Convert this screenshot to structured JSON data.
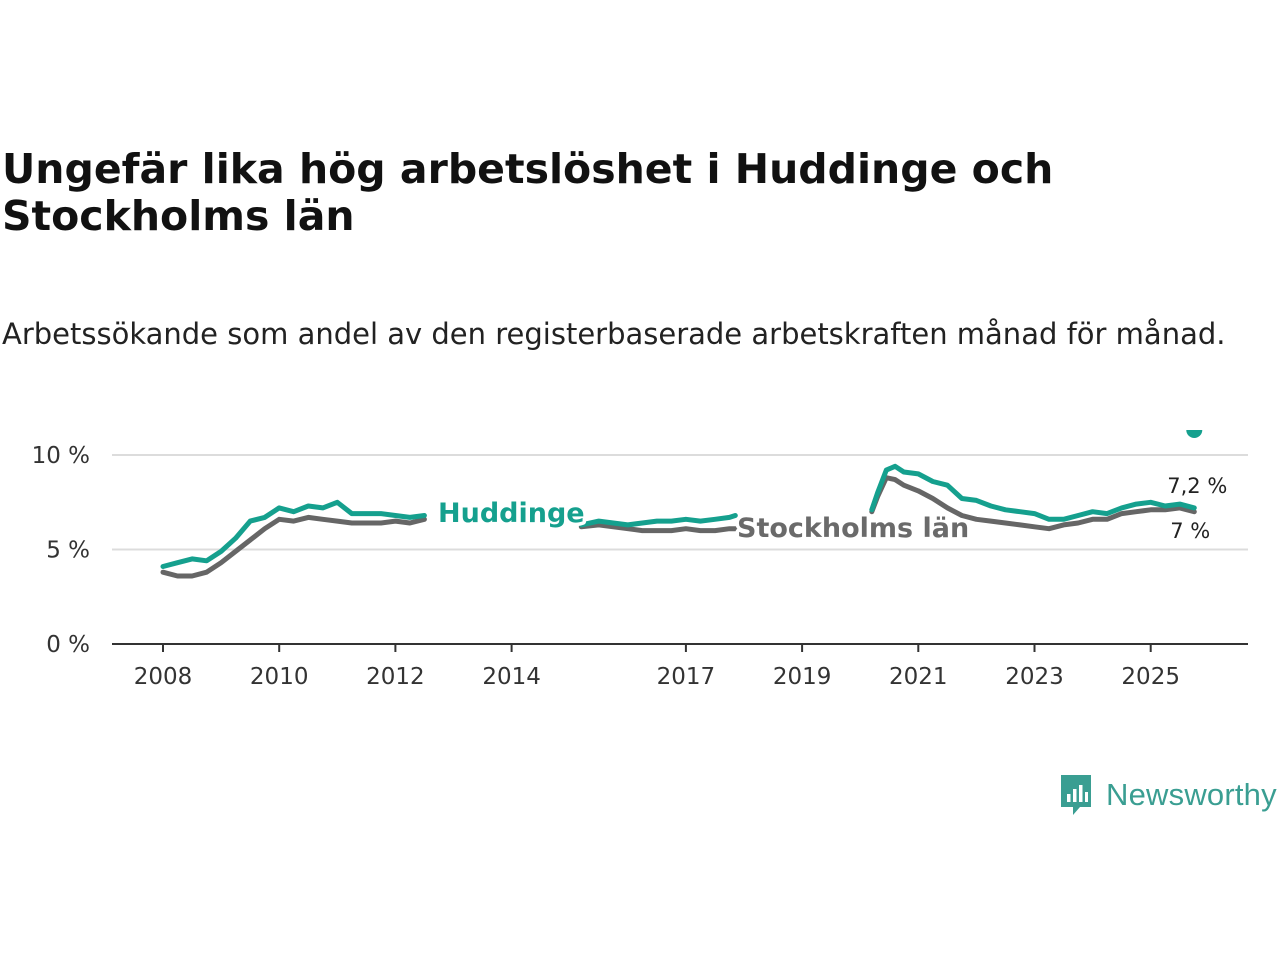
{
  "title": "Ungefär lika hög arbetslöshet i Huddinge och Stockholms län",
  "subtitle": "Arbetssökande som andel av den registerbaserade arbetskraften månad för månad.",
  "brand": {
    "name": "Newsworthy",
    "icon": "newsworthy-logo-icon",
    "color": "#3a9e92"
  },
  "chart_data": {
    "type": "line",
    "title": "Ungefär lika hög arbetslöshet i Huddinge och Stockholms län",
    "xlabel": "",
    "ylabel": "",
    "ylim": [
      0,
      10
    ],
    "yticks": [
      0,
      5,
      10
    ],
    "ytick_labels": [
      "0 %",
      "5 %",
      "10 %"
    ],
    "xticks": [
      2008,
      2010,
      2012,
      2014,
      2017,
      2019,
      2021,
      2023,
      2025
    ],
    "xtick_labels": [
      "2008",
      "2010",
      "2012",
      "2014",
      "2017",
      "2019",
      "2021",
      "2023",
      "2025"
    ],
    "grid": true,
    "segments": [
      {
        "x": [
          2008.0,
          2008.25,
          2008.5,
          2008.75,
          2009.0,
          2009.25,
          2009.5,
          2009.75,
          2010.0,
          2010.25,
          2010.5,
          2010.75,
          2011.0,
          2011.25,
          2011.5,
          2011.75,
          2012.0,
          2012.25,
          2012.5
        ]
      },
      {
        "x": [
          2015.2,
          2015.5,
          2015.75,
          2016.0,
          2016.25,
          2016.5,
          2016.75,
          2017.0,
          2017.25,
          2017.5,
          2017.75,
          2017.85
        ]
      },
      {
        "x": [
          2020.2,
          2020.3,
          2020.45,
          2020.6,
          2020.75,
          2021.0,
          2021.25,
          2021.5,
          2021.75,
          2022.0,
          2022.25,
          2022.5,
          2022.75,
          2023.0,
          2023.25,
          2023.5,
          2023.75,
          2024.0,
          2024.25,
          2024.5,
          2024.75,
          2025.0,
          2025.25,
          2025.5,
          2025.75
        ]
      }
    ],
    "series": [
      {
        "name": "Huddinge",
        "color": "#15a08e",
        "end_label": "7,2 %",
        "values": [
          [
            4.1,
            4.3,
            4.5,
            4.4,
            4.9,
            5.6,
            6.5,
            6.7,
            7.2,
            7.0,
            7.3,
            7.2,
            7.5,
            6.9,
            6.9,
            6.9,
            6.8,
            6.7,
            6.8
          ],
          [
            6.3,
            6.5,
            6.4,
            6.3,
            6.4,
            6.5,
            6.5,
            6.6,
            6.5,
            6.6,
            6.7,
            6.8
          ],
          [
            7.1,
            8.0,
            9.2,
            9.4,
            9.1,
            9.0,
            8.6,
            8.4,
            7.7,
            7.6,
            7.3,
            7.1,
            7.0,
            6.9,
            6.6,
            6.6,
            6.8,
            7.0,
            6.9,
            7.2,
            7.4,
            7.5,
            7.3,
            7.4,
            7.2
          ]
        ]
      },
      {
        "name": "Stockholms län",
        "color": "#666666",
        "end_label": "7 %",
        "values": [
          [
            3.8,
            3.6,
            3.6,
            3.8,
            4.3,
            4.9,
            5.5,
            6.1,
            6.6,
            6.5,
            6.7,
            6.6,
            6.5,
            6.4,
            6.4,
            6.4,
            6.5,
            6.4,
            6.6
          ],
          [
            6.2,
            6.3,
            6.2,
            6.1,
            6.0,
            6.0,
            6.0,
            6.1,
            6.0,
            6.0,
            6.1,
            6.1
          ],
          [
            7.0,
            7.8,
            8.8,
            8.7,
            8.4,
            8.1,
            7.7,
            7.2,
            6.8,
            6.6,
            6.5,
            6.4,
            6.3,
            6.2,
            6.1,
            6.3,
            6.4,
            6.6,
            6.6,
            6.9,
            7.0,
            7.1,
            7.1,
            7.2,
            7.0
          ]
        ]
      }
    ]
  }
}
